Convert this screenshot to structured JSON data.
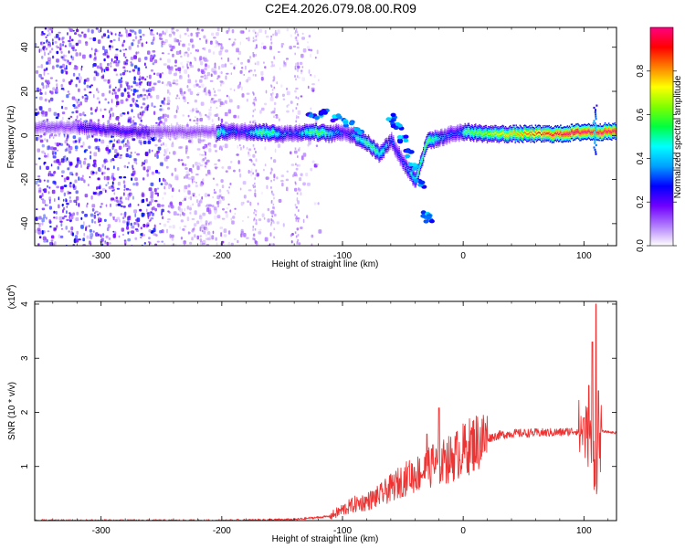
{
  "title": "C2E4.2026.079.08.00.R09",
  "chart_data": [
    {
      "type": "heatmap",
      "xlabel": "Height of straight line (km)",
      "ylabel": "Frequency (Hz)",
      "xlim": [
        -355,
        127
      ],
      "ylim": [
        -50,
        49
      ],
      "xticks": [
        -300,
        -200,
        -100,
        0,
        100
      ],
      "yticks": [
        -40,
        -20,
        0,
        20,
        40
      ],
      "ridge_center_hz": [
        [
          -315,
          4
        ],
        [
          -280,
          2
        ],
        [
          -205,
          2
        ],
        [
          -170,
          2
        ],
        [
          -150,
          1
        ],
        [
          -125,
          2
        ],
        [
          -110,
          1
        ],
        [
          -100,
          2
        ],
        [
          -90,
          0
        ],
        [
          -80,
          -3
        ],
        [
          -70,
          -8
        ],
        [
          -60,
          -2
        ],
        [
          -50,
          -12
        ],
        [
          -40,
          -20
        ],
        [
          -30,
          -2
        ],
        [
          -20,
          -1
        ],
        [
          -10,
          1
        ],
        [
          0,
          2
        ],
        [
          20,
          1
        ],
        [
          50,
          1
        ],
        [
          80,
          1
        ],
        [
          100,
          2
        ],
        [
          127,
          2
        ]
      ],
      "colorbar": {
        "label": "Normalized spectral amplitude",
        "range": [
          0,
          1
        ],
        "ticks": [
          "0.0",
          "0.2",
          "0.4",
          "0.6",
          "0.8"
        ],
        "colors": [
          "#ffffff",
          "#b07cff",
          "#7000ff",
          "#0000ff",
          "#00a0ff",
          "#00ffff",
          "#00ff40",
          "#80ff00",
          "#ffff00",
          "#ff8000",
          "#ff0000",
          "#ff0080"
        ]
      }
    },
    {
      "type": "line",
      "xlabel": "Height of straight line (km)",
      "ylabel": "SNR (10 * v/v)",
      "y_multiplier": "(x10",
      "y_multiplier_exp": "4",
      "y_multiplier_close": ")",
      "xlim": [
        -355,
        127
      ],
      "ylim": [
        0,
        4.05
      ],
      "xticks": [
        -300,
        -200,
        -100,
        0,
        100
      ],
      "yticks": [
        1,
        2,
        3,
        4
      ],
      "color": "#ee3333",
      "envelope": [
        [
          -355,
          0.0
        ],
        [
          -200,
          0.0
        ],
        [
          -140,
          0.02
        ],
        [
          -110,
          0.08
        ],
        [
          -100,
          0.2
        ],
        [
          -90,
          0.3
        ],
        [
          -80,
          0.35
        ],
        [
          -70,
          0.45
        ],
        [
          -60,
          0.6
        ],
        [
          -50,
          0.75
        ],
        [
          -40,
          0.85
        ],
        [
          -30,
          0.95
        ],
        [
          -20,
          1.05
        ],
        [
          -10,
          1.15
        ],
        [
          0,
          1.3
        ],
        [
          10,
          1.45
        ],
        [
          20,
          1.52
        ],
        [
          30,
          1.58
        ],
        [
          40,
          1.61
        ],
        [
          60,
          1.62
        ],
        [
          80,
          1.63
        ],
        [
          95,
          1.66
        ],
        [
          100,
          1.66
        ],
        [
          105,
          1.5
        ],
        [
          110,
          1.0
        ],
        [
          115,
          1.65
        ],
        [
          127,
          1.62
        ]
      ],
      "spikes": [
        [
          -45,
          1.0
        ],
        [
          -30,
          1.6
        ],
        [
          -25,
          1.4
        ],
        [
          -20,
          2.08
        ],
        [
          -15,
          1.3
        ],
        [
          100,
          1.9
        ],
        [
          104,
          2.5
        ],
        [
          107,
          3.3
        ],
        [
          110,
          4.0
        ],
        [
          112,
          2.4
        ]
      ]
    }
  ]
}
